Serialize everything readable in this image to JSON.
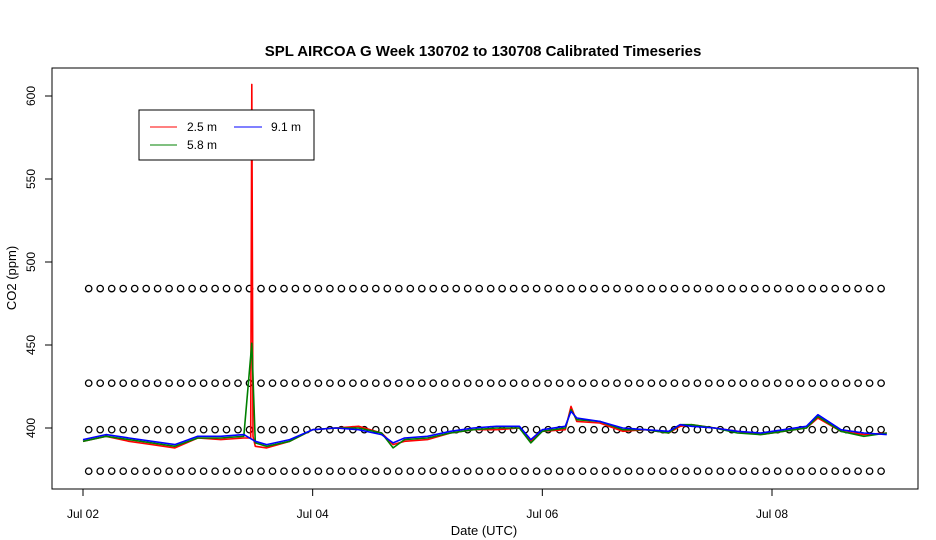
{
  "chart_data": {
    "type": "line",
    "title": "SPL AIRCOA G  Week 130702 to 130708  Calibrated Timeseries",
    "xlabel": "Date (UTC)",
    "ylabel": "CO2 (ppm)",
    "xlim": [
      0,
      7.0
    ],
    "ylim": [
      365,
      620
    ],
    "x_ticks": [
      {
        "label": "Jul 02",
        "x": 0
      },
      {
        "label": "Jul 04",
        "x": 2
      },
      {
        "label": "Jul 06",
        "x": 4
      },
      {
        "label": "Jul 08",
        "x": 6
      }
    ],
    "y_ticks": [
      400,
      450,
      500,
      550,
      600
    ],
    "legend": {
      "placement": "top-left",
      "entries": [
        {
          "label": "2.5 m",
          "color": "#ff0000"
        },
        {
          "label": "9.1 m",
          "color": "#0000ff"
        },
        {
          "label": "5.8 m",
          "color": "#008000"
        }
      ]
    },
    "series": [
      {
        "name": "2.5 m",
        "color": "#ff0000",
        "x": [
          0.0,
          0.2,
          0.4,
          0.6,
          0.8,
          1.0,
          1.2,
          1.4,
          1.46,
          1.47,
          1.48,
          1.5,
          1.6,
          1.8,
          2.0,
          2.2,
          2.4,
          2.6,
          2.7,
          2.8,
          3.0,
          3.2,
          3.4,
          3.6,
          3.8,
          3.9,
          4.0,
          4.2,
          4.25,
          4.3,
          4.5,
          4.7,
          4.9,
          5.1,
          5.2,
          5.3,
          5.5,
          5.7,
          5.9,
          6.1,
          6.3,
          6.4,
          6.6,
          6.8,
          7.0
        ],
        "y": [
          392,
          395,
          392,
          390,
          388,
          394,
          393,
          394,
          394,
          607,
          395,
          389,
          388,
          392,
          399,
          400,
          401,
          397,
          390,
          392,
          393,
          397,
          399,
          399,
          400,
          392,
          398,
          399,
          413,
          404,
          403,
          398,
          399,
          397,
          401,
          402,
          400,
          398,
          396,
          398,
          400,
          406,
          398,
          396,
          397
        ]
      },
      {
        "name": "5.8 m",
        "color": "#008000",
        "x": [
          0.0,
          0.2,
          0.4,
          0.6,
          0.8,
          1.0,
          1.2,
          1.4,
          1.47,
          1.5,
          1.6,
          1.8,
          2.0,
          2.2,
          2.4,
          2.6,
          2.7,
          2.8,
          3.0,
          3.2,
          3.4,
          3.6,
          3.8,
          3.9,
          4.0,
          4.2,
          4.25,
          4.3,
          4.5,
          4.7,
          4.9,
          5.1,
          5.2,
          5.3,
          5.5,
          5.7,
          5.9,
          6.1,
          6.3,
          6.4,
          6.6,
          6.8,
          7.0
        ],
        "y": [
          392,
          395,
          393,
          391,
          389,
          394,
          394,
          395,
          451,
          391,
          389,
          392,
          399,
          400,
          400,
          397,
          388,
          393,
          394,
          397,
          399,
          400,
          400,
          391,
          398,
          400,
          411,
          405,
          404,
          399,
          399,
          397,
          402,
          402,
          400,
          397,
          396,
          398,
          400,
          407,
          398,
          395,
          397
        ]
      },
      {
        "name": "9.1 m",
        "color": "#0000ff",
        "x": [
          0.0,
          0.2,
          0.4,
          0.6,
          0.8,
          1.0,
          1.2,
          1.4,
          1.5,
          1.6,
          1.8,
          2.0,
          2.2,
          2.4,
          2.6,
          2.7,
          2.8,
          3.0,
          3.2,
          3.4,
          3.6,
          3.8,
          3.9,
          4.0,
          4.2,
          4.25,
          4.3,
          4.5,
          4.7,
          4.9,
          5.1,
          5.2,
          5.3,
          5.5,
          5.7,
          5.9,
          6.1,
          6.3,
          6.4,
          6.6,
          6.8,
          7.0
        ],
        "y": [
          393,
          396,
          394,
          392,
          390,
          395,
          395,
          396,
          392,
          390,
          393,
          399,
          400,
          399,
          396,
          391,
          394,
          395,
          398,
          400,
          401,
          401,
          393,
          399,
          401,
          410,
          406,
          404,
          400,
          399,
          398,
          402,
          401,
          400,
          398,
          397,
          399,
          401,
          408,
          399,
          397,
          396
        ]
      }
    ],
    "reference_markers": {
      "symbol": "open-circle",
      "color": "#000000",
      "levels": [
        374,
        399,
        427,
        484
      ],
      "x_start": 0.05,
      "x_end": 7.0,
      "x_step": 0.1
    }
  }
}
